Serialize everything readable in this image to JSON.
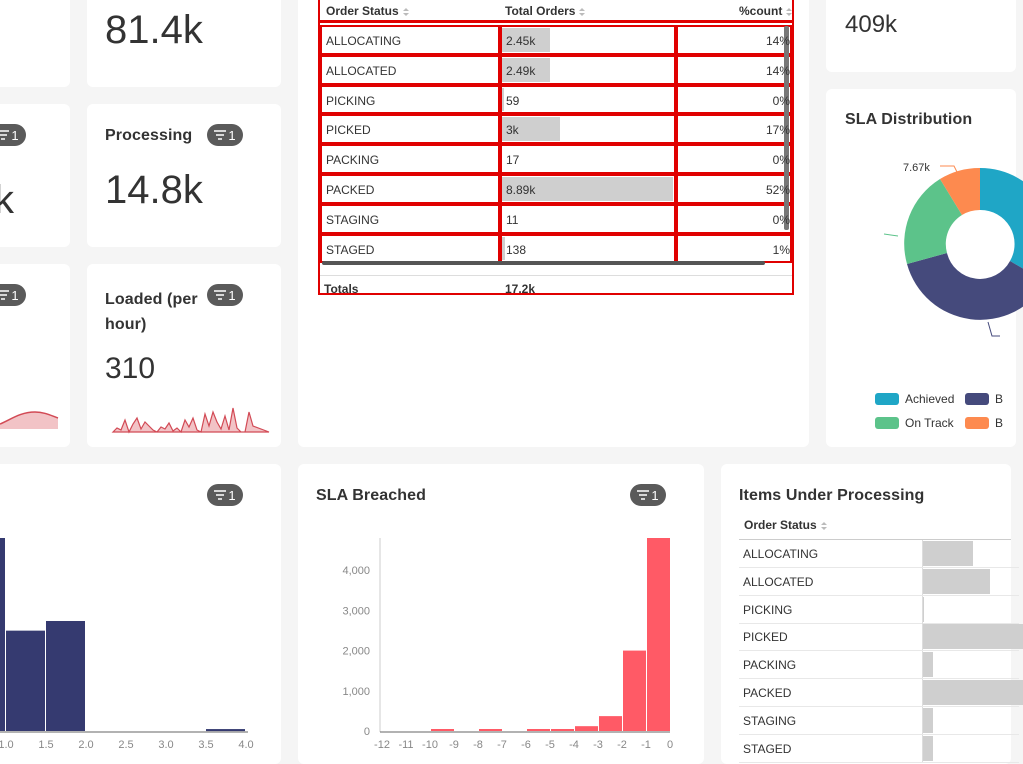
{
  "cards": {
    "top_left_value": "81.4k",
    "processing": {
      "title": "Processing",
      "value": "14.8k",
      "filter_count": "1"
    },
    "left_mid": {
      "filter_count": "1"
    },
    "left_bottom": {
      "filter_count": "1"
    },
    "loaded": {
      "title": "Loaded (per hour)",
      "value": "310",
      "filter_count": "1"
    },
    "top_right_value": "409k"
  },
  "order_table": {
    "headers": {
      "status": "Order Status",
      "total": "Total Orders",
      "count": "%count"
    },
    "rows": [
      {
        "status": "ALLOCATING",
        "total": "2.45k",
        "pct": "14%",
        "share": 0.28
      },
      {
        "status": "ALLOCATED",
        "total": "2.49k",
        "pct": "14%",
        "share": 0.28
      },
      {
        "status": "PICKING",
        "total": "59",
        "pct": "0%",
        "share": 0.01
      },
      {
        "status": "PICKED",
        "total": "3k",
        "pct": "17%",
        "share": 0.34
      },
      {
        "status": "PACKING",
        "total": "17",
        "pct": "0%",
        "share": 0.0
      },
      {
        "status": "PACKED",
        "total": "8.89k",
        "pct": "52%",
        "share": 1.0
      },
      {
        "status": "STAGING",
        "total": "11",
        "pct": "0%",
        "share": 0.0
      },
      {
        "status": "STAGED",
        "total": "138",
        "pct": "1%",
        "share": 0.02
      }
    ],
    "totals_label": "Totals",
    "totals_value": "17.2k"
  },
  "sla_distribution": {
    "title": "SLA Distribution",
    "callout_value": "7.67k",
    "legend": [
      {
        "name": "Achieved",
        "color": "#1fa6c6"
      },
      {
        "name": "B",
        "color": "#454a7c"
      },
      {
        "name": "On Track",
        "color": "#5cc38a"
      },
      {
        "name": "B",
        "color": "#fd8a4f"
      }
    ]
  },
  "left_histogram": {
    "filter_count": "1",
    "chart_data": {
      "type": "bar",
      "x_ticks": [
        "1.0",
        "1.5",
        "2.0",
        "2.5",
        "3.0",
        "3.5",
        "4.0"
      ],
      "bins": [
        {
          "x0": 0.5,
          "x1": 1.0,
          "value": 1.0
        },
        {
          "x0": 1.0,
          "x1": 1.5,
          "value": 0.52
        },
        {
          "x0": 1.5,
          "x1": 2.0,
          "value": 0.57
        },
        {
          "x0": 2.0,
          "x1": 2.5,
          "value": 0.0
        },
        {
          "x0": 2.5,
          "x1": 3.0,
          "value": 0.0
        },
        {
          "x0": 3.0,
          "x1": 3.5,
          "value": 0.0
        },
        {
          "x0": 3.5,
          "x1": 4.0,
          "value": 0.01
        }
      ],
      "color": "#353a70"
    }
  },
  "sla_breached": {
    "title": "SLA Breached",
    "filter_count": "1",
    "chart_data": {
      "type": "bar",
      "y_ticks": [
        "0",
        "1,000",
        "2,000",
        "3,000",
        "4,000"
      ],
      "x_ticks": [
        "-12",
        "-11",
        "-10",
        "-9",
        "-8",
        "-7",
        "-6",
        "-5",
        "-4",
        "-3",
        "-2",
        "-1",
        "0"
      ],
      "ylim": [
        0,
        4800
      ],
      "bins": [
        {
          "x0": -12,
          "x1": -11,
          "value": 0
        },
        {
          "x0": -11,
          "x1": -10,
          "value": 0
        },
        {
          "x0": -10,
          "x1": -9,
          "value": 30
        },
        {
          "x0": -9,
          "x1": -8,
          "value": 0
        },
        {
          "x0": -8,
          "x1": -7,
          "value": 30
        },
        {
          "x0": -7,
          "x1": -6,
          "value": 0
        },
        {
          "x0": -6,
          "x1": -5,
          "value": 20
        },
        {
          "x0": -5,
          "x1": -4,
          "value": 40
        },
        {
          "x0": -4,
          "x1": -3,
          "value": 120
        },
        {
          "x0": -3,
          "x1": -2,
          "value": 370
        },
        {
          "x0": -2,
          "x1": -1,
          "value": 2000
        },
        {
          "x0": -1,
          "x1": 0,
          "value": 4800
        }
      ],
      "color": "#ff5a66"
    }
  },
  "items_under_processing": {
    "title": "Items Under Processing",
    "header": "Order Status",
    "rows": [
      {
        "status": "ALLOCATING",
        "share": 0.5
      },
      {
        "status": "ALLOCATED",
        "share": 0.67
      },
      {
        "status": "PICKING",
        "share": 0.01
      },
      {
        "status": "PICKED",
        "share": 1.0
      },
      {
        "status": "PACKING",
        "share": 0.1
      },
      {
        "status": "PACKED",
        "share": 1.0
      },
      {
        "status": "STAGING",
        "share": 0.1
      },
      {
        "status": "STAGED",
        "share": 0.1
      }
    ]
  }
}
